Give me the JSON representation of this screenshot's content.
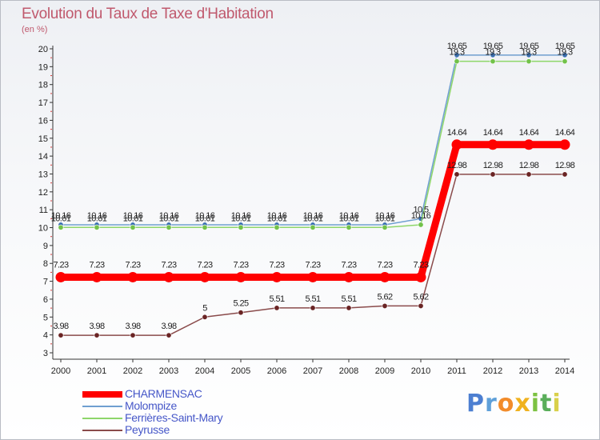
{
  "chart_data": {
    "type": "line",
    "title": "Evolution du Taux de Taxe d'Habitation",
    "unit_label": "(en %)",
    "xlabel": "",
    "ylabel": "(en %)",
    "ylim": [
      3,
      20
    ],
    "yticks": [
      3,
      4,
      5,
      6,
      7,
      8,
      9,
      10,
      11,
      12,
      13,
      14,
      15,
      16,
      17,
      18,
      19,
      20
    ],
    "categories": [
      "2000",
      "2001",
      "2002",
      "2003",
      "2004",
      "2005",
      "2006",
      "2007",
      "2008",
      "2009",
      "2010",
      "2011",
      "2012",
      "2013",
      "2014"
    ],
    "grid": false,
    "legend_position": "bottom-left",
    "series": [
      {
        "name": "Molompize",
        "color": "#6f9fd0",
        "marker_color": "#3a6fb0",
        "line_width": 1.5,
        "values": [
          10.16,
          10.16,
          10.16,
          10.16,
          10.16,
          10.16,
          10.16,
          10.16,
          10.16,
          10.16,
          10.5,
          19.65,
          19.65,
          19.65,
          19.65
        ],
        "labels": [
          "10.16",
          "10.16",
          "10.16",
          "10.16",
          "10.16",
          "10.16",
          "10.16",
          "10.16",
          "10.16",
          "10.16",
          "10.5",
          "19.65",
          "19.65",
          "19.65",
          "19.65"
        ],
        "label_side": "above"
      },
      {
        "name": "Ferrières-Saint-Mary",
        "color": "#8ed66a",
        "marker_color": "#72c24a",
        "line_width": 1.5,
        "values": [
          10.01,
          10.01,
          10.01,
          10.01,
          10.01,
          10.01,
          10.01,
          10.01,
          10.01,
          10.01,
          10.16,
          19.3,
          19.3,
          19.3,
          19.3
        ],
        "labels": [
          "10.01",
          "10.01",
          "10.01",
          "10.01",
          "10.01",
          "10.01",
          "10.01",
          "10.01",
          "10.01",
          "10.01",
          "10.16",
          "19.3",
          "19.3",
          "19.3",
          "19.3"
        ],
        "label_side": "above"
      },
      {
        "name": "Peyrusse",
        "color": "#8a4b4b",
        "marker_color": "#6a2424",
        "line_width": 1.5,
        "values": [
          3.98,
          3.98,
          3.98,
          3.98,
          5,
          5.25,
          5.51,
          5.51,
          5.51,
          5.62,
          5.62,
          12.98,
          12.98,
          12.98,
          12.98
        ],
        "labels": [
          "3.98",
          "3.98",
          "3.98",
          "3.98",
          "5",
          "5.25",
          "5.51",
          "5.51",
          "5.51",
          "5.62",
          "5.62",
          "12.98",
          "12.98",
          "12.98",
          "12.98"
        ],
        "label_side": "above"
      },
      {
        "name": "CHARMENSAC",
        "color": "#ff0000",
        "marker_color": "#ff0000",
        "line_width": 9,
        "values": [
          7.23,
          7.23,
          7.23,
          7.23,
          7.23,
          7.23,
          7.23,
          7.23,
          7.23,
          7.23,
          7.23,
          14.64,
          14.64,
          14.64,
          14.64
        ],
        "labels": [
          "7.23",
          "7.23",
          "7.23",
          "7.23",
          "7.23",
          "7.23",
          "7.23",
          "7.23",
          "7.23",
          "7.23",
          "7.23",
          "14.64",
          "14.64",
          "14.64",
          "14.64"
        ],
        "label_side": "above"
      }
    ]
  },
  "legend": [
    {
      "name": "CHARMENSAC",
      "color": "#ff0000",
      "thick": true
    },
    {
      "name": "Molompize",
      "color": "#6f9fd0",
      "thick": false
    },
    {
      "name": "Ferrières-Saint-Mary",
      "color": "#8ed66a",
      "thick": false
    },
    {
      "name": "Peyrusse",
      "color": "#8a4b4b",
      "thick": false
    }
  ],
  "brand": {
    "letters": [
      "P",
      "r",
      "o",
      "x",
      "i",
      "t",
      "i"
    ],
    "colors": [
      "#4d7fd1",
      "#5fa0d9",
      "#f28c2b",
      "#f0b21f",
      "#7dc242",
      "#5aae5a",
      "#d9d04a"
    ]
  }
}
